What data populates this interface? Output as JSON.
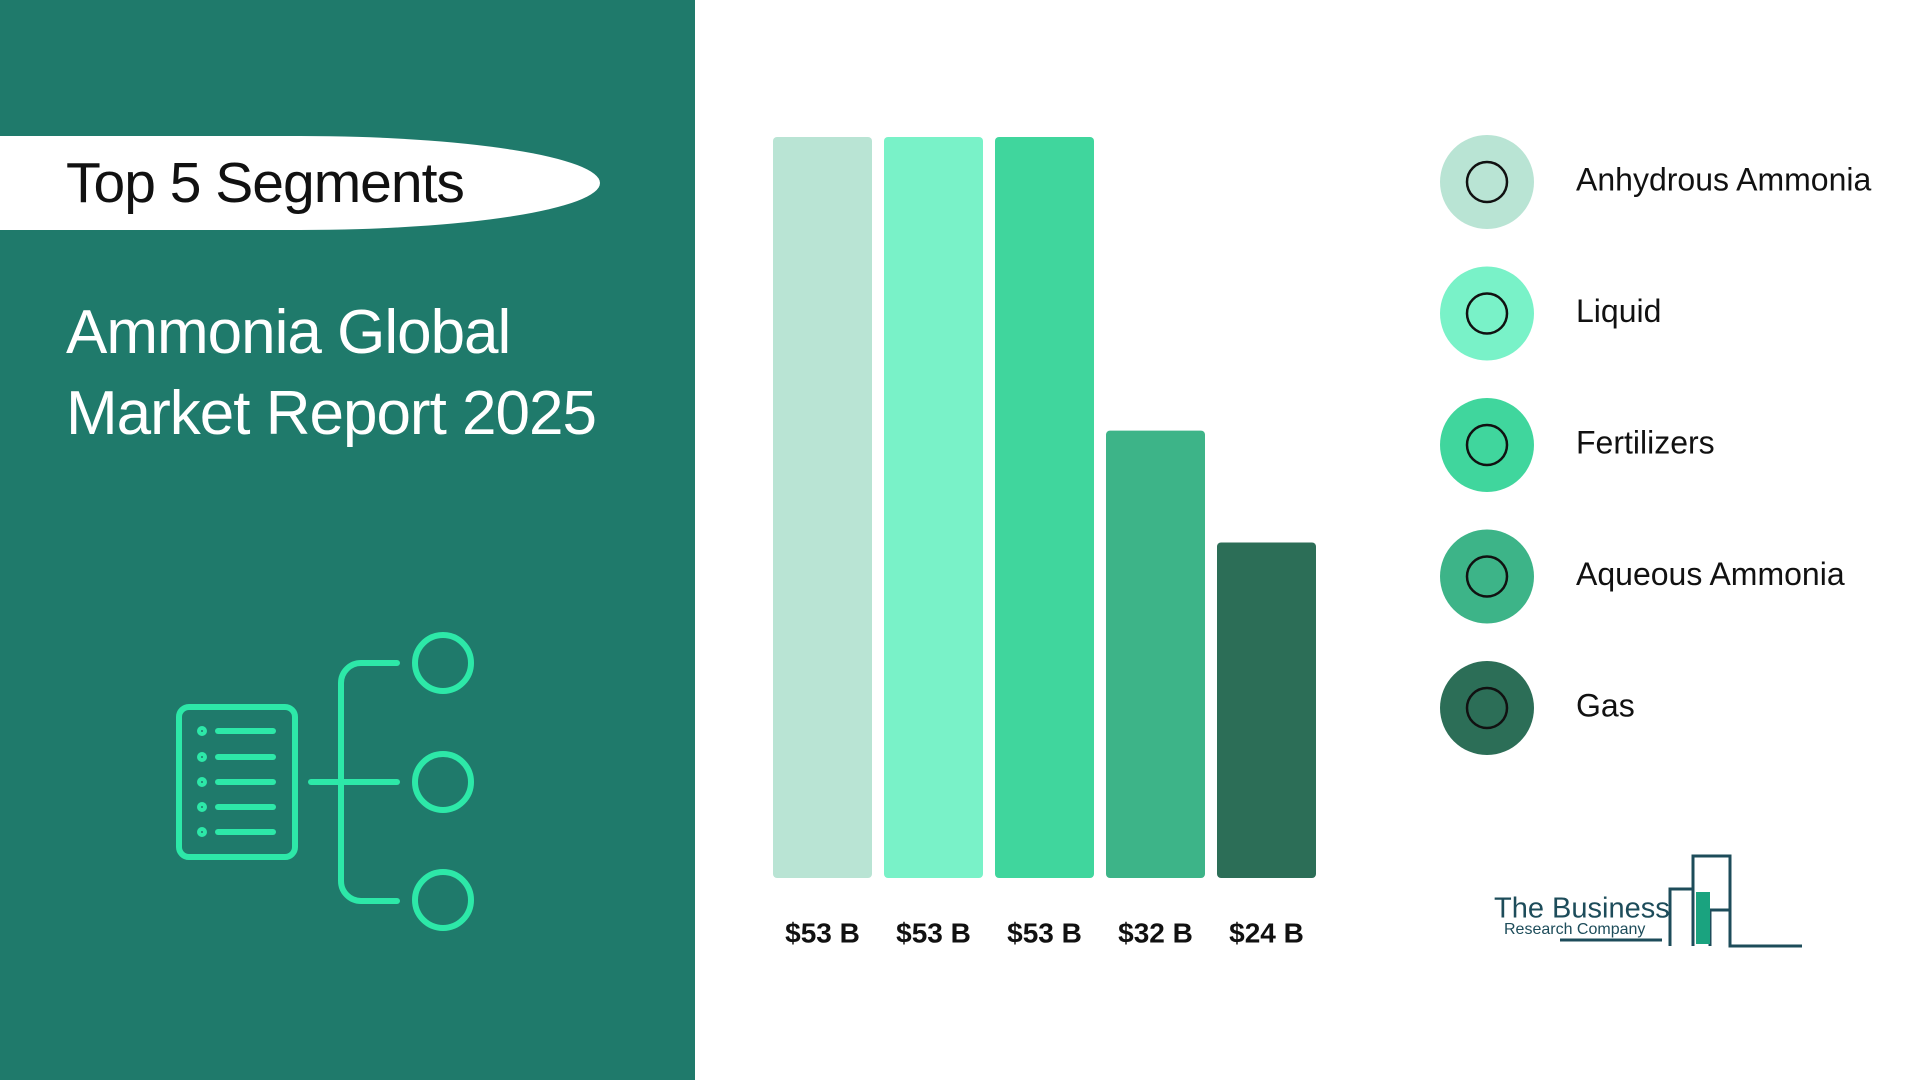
{
  "header": {
    "badge": "Top 5 Segments",
    "title": "Ammonia Global Market Report 2025"
  },
  "chart_data": {
    "type": "bar",
    "categories": [
      "Anhydrous Ammonia",
      "Liquid",
      "Fertilizers",
      "Aqueous Ammonia",
      "Gas"
    ],
    "values": [
      53,
      53,
      53,
      32,
      24
    ],
    "value_labels": [
      "$53 B",
      "$53 B",
      "$53 B",
      "$32 B",
      "$24 B"
    ],
    "colors": [
      "#b9e4d4",
      "#79f2c8",
      "#40d69d",
      "#3db488",
      "#2c6e57"
    ]
  },
  "logo": {
    "line1": "The Business",
    "line2": "Research Company"
  }
}
